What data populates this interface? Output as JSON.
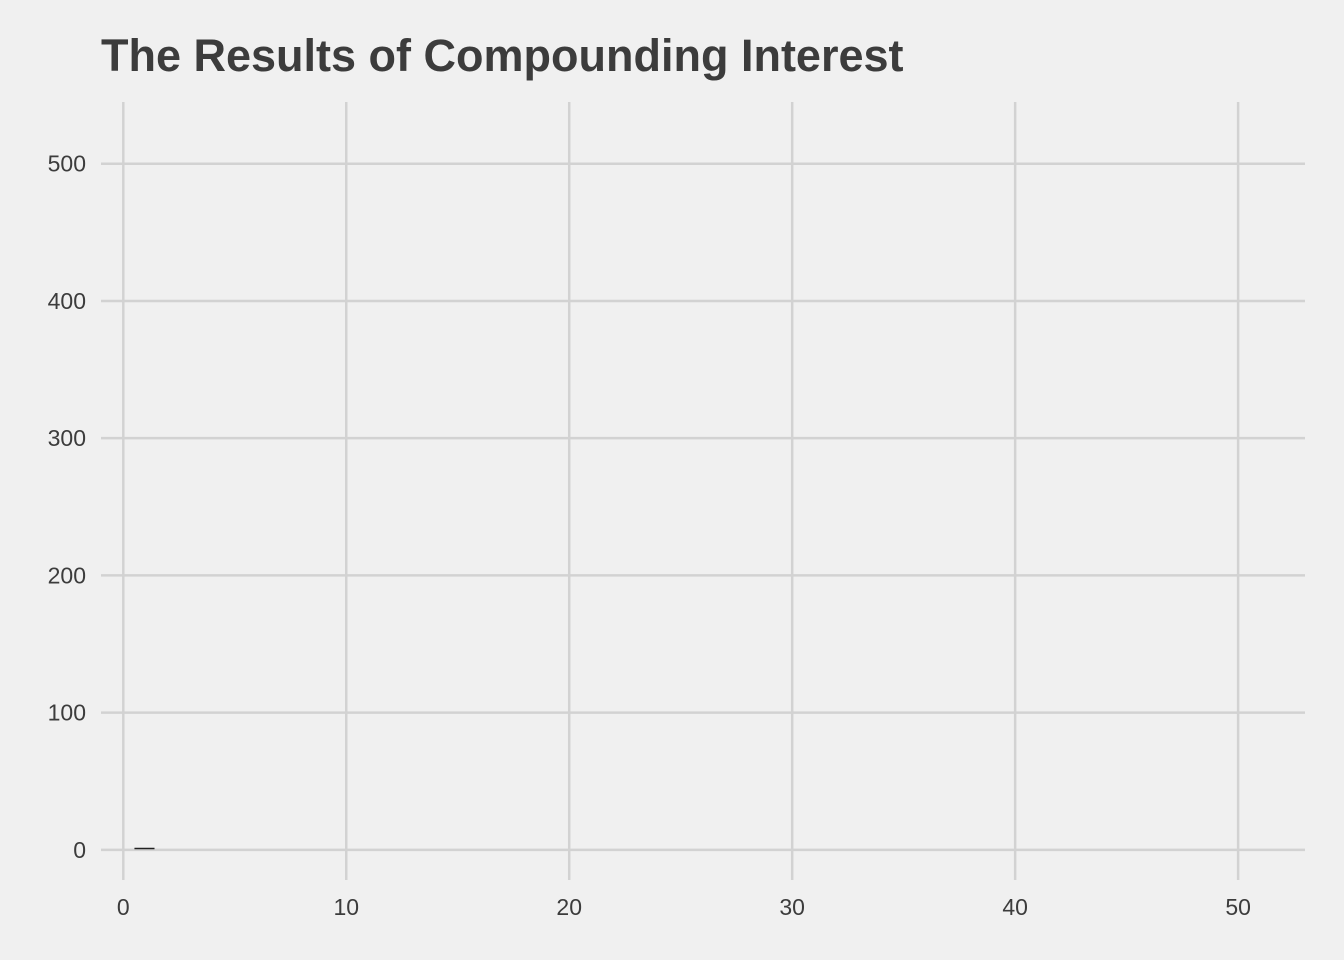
{
  "chart_data": {
    "type": "line",
    "title": "The Results of Compounding Interest",
    "xlabel": "",
    "ylabel": "",
    "xlim": [
      -1,
      53
    ],
    "ylim": [
      -22,
      545
    ],
    "x_ticks": [
      0,
      10,
      20,
      30,
      40,
      50
    ],
    "y_ticks": [
      0,
      100,
      200,
      300,
      400,
      500
    ],
    "grid": true,
    "legend": "none",
    "series": [
      {
        "x": [
          0.5,
          1.4
        ],
        "y": [
          1,
          1
        ]
      }
    ]
  },
  "colors": {
    "background": "#f0f0f0",
    "grid": "#d2d2d2",
    "text": "#3c3c3c",
    "line": "#222222"
  }
}
